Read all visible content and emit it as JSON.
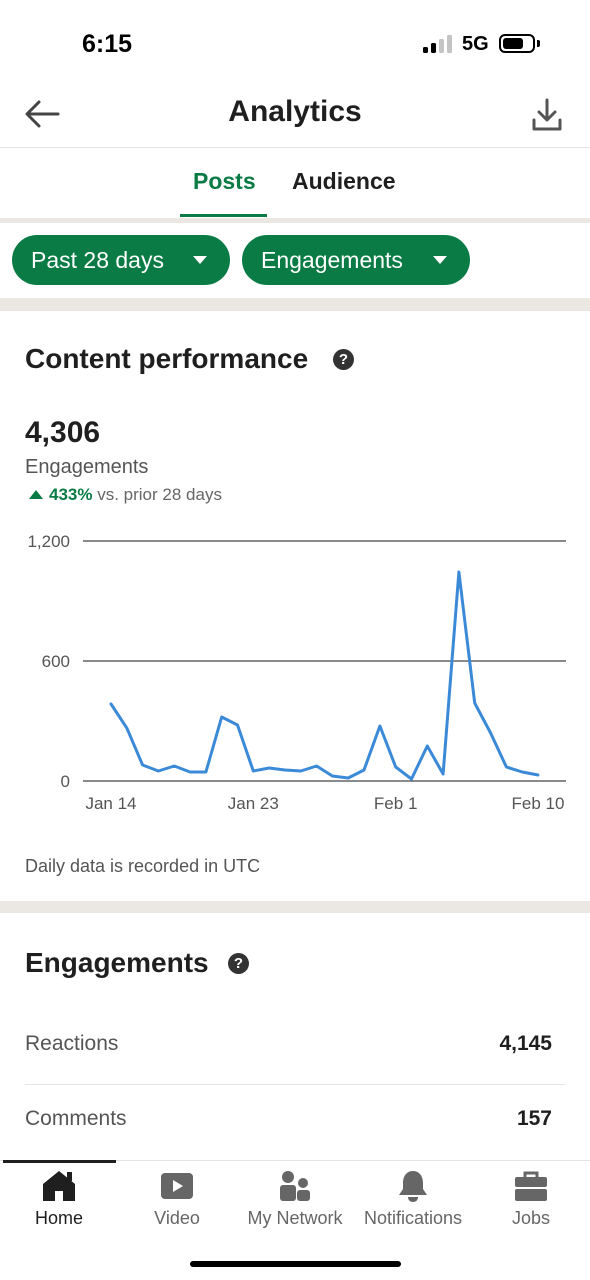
{
  "status": {
    "time": "6:15",
    "network": "5G"
  },
  "header": {
    "title": "Analytics"
  },
  "tabs": [
    {
      "label": "Posts",
      "active": true
    },
    {
      "label": "Audience",
      "active": false
    }
  ],
  "filters": {
    "range": "Past 28 days",
    "metric": "Engagements"
  },
  "performance": {
    "title": "Content performance",
    "total": "4,306",
    "metric_label": "Engagements",
    "delta_pct": "433%",
    "delta_text": "vs. prior 28 days",
    "note": "Daily data is recorded in UTC"
  },
  "chart_data": {
    "type": "line",
    "x": [
      "Jan 14",
      "Jan 15",
      "Jan 16",
      "Jan 17",
      "Jan 18",
      "Jan 19",
      "Jan 20",
      "Jan 21",
      "Jan 22",
      "Jan 23",
      "Jan 24",
      "Jan 25",
      "Jan 26",
      "Jan 27",
      "Jan 28",
      "Jan 29",
      "Jan 30",
      "Jan 31",
      "Feb 1",
      "Feb 2",
      "Feb 3",
      "Feb 4",
      "Feb 5",
      "Feb 6",
      "Feb 7",
      "Feb 8",
      "Feb 9",
      "Feb 10"
    ],
    "x_tick_labels": [
      "Jan 14",
      "Jan 23",
      "Feb 1",
      "Feb 10"
    ],
    "series": [
      {
        "values": [
          385,
          265,
          80,
          50,
          75,
          45,
          45,
          320,
          280,
          50,
          65,
          55,
          50,
          75,
          25,
          15,
          55,
          275,
          70,
          10,
          175,
          35,
          1045,
          390,
          240,
          70,
          45,
          30
        ],
        "color": "#3b8ad8"
      }
    ],
    "y_ticks": [
      0,
      600,
      1200
    ],
    "y_tick_labels": [
      "0",
      "600",
      "1,200"
    ],
    "ylim": [
      0,
      1200
    ],
    "grid": true
  },
  "engagements": {
    "title": "Engagements",
    "rows": [
      {
        "label": "Reactions",
        "value": "4,145"
      },
      {
        "label": "Comments",
        "value": "157"
      }
    ]
  },
  "nav": [
    {
      "label": "Home",
      "icon": "home-icon",
      "active": true
    },
    {
      "label": "Video",
      "icon": "video-icon",
      "active": false
    },
    {
      "label": "My Network",
      "icon": "network-icon",
      "active": false
    },
    {
      "label": "Notifications",
      "icon": "bell-icon",
      "active": false
    },
    {
      "label": "Jobs",
      "icon": "briefcase-icon",
      "active": false
    }
  ],
  "colors": {
    "accent": "#0a7b45",
    "line": "#3b8ad8",
    "separator": "#ebe8e3"
  }
}
